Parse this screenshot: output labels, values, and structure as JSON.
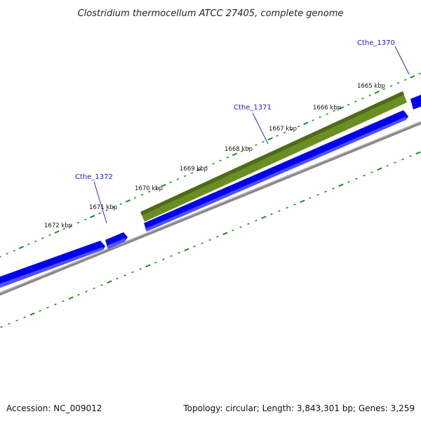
{
  "map": {
    "title": "Clostridium thermocellum ATCC 27405, complete genome",
    "accession": "Accession: NC_009012",
    "summary": "Topology: circular; Length: 3,843,301 bp; Genes: 3,259"
  },
  "ticks": [
    {
      "label": "1665 kbp"
    },
    {
      "label": "1666 kbp"
    },
    {
      "label": "1667 kbp"
    },
    {
      "label": "1668 kbp"
    },
    {
      "label": "1669 kbp"
    },
    {
      "label": "1670 kbp"
    },
    {
      "label": "1671 kbp"
    },
    {
      "label": "1672 kbp"
    }
  ],
  "genes": [
    {
      "name": "Cthe_1370"
    },
    {
      "name": "Cthe_1371"
    },
    {
      "name": "Cthe_1372"
    }
  ],
  "colors": {
    "cds": "#0000ee",
    "cds_light": "#3a3aff",
    "feature": "#6b8e23",
    "feature_dark": "#4e6b18",
    "backbone": "#888888",
    "tick": "#1f8a1f",
    "label": "#1a1acc"
  }
}
